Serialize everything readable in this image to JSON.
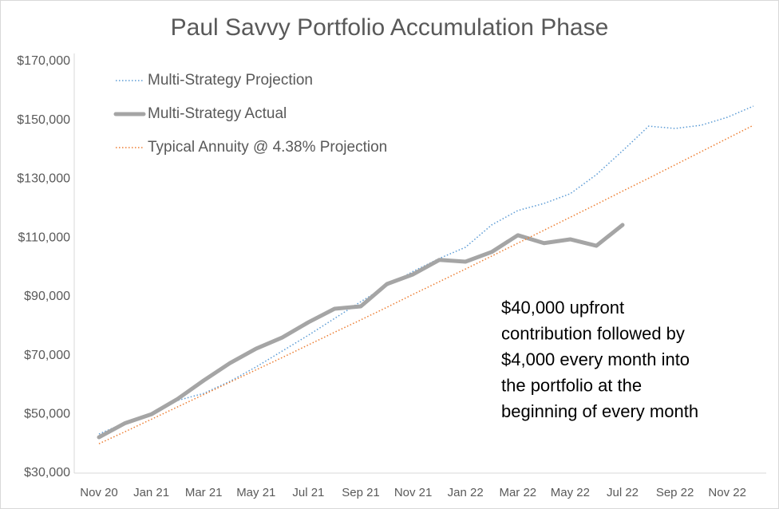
{
  "chart_data": {
    "type": "line",
    "title": "Paul Savvy Portfolio Accumulation Phase",
    "categories": [
      "Nov 20",
      null,
      "Jan 21",
      null,
      "Mar 21",
      null,
      "May 21",
      null,
      "Jul 21",
      null,
      "Sep 21",
      null,
      "Nov 21",
      null,
      "Jan 22",
      null,
      "Mar 22",
      null,
      "May 22",
      null,
      "Jul 22",
      null,
      "Sep 22",
      null,
      "Nov 22",
      null
    ],
    "series": [
      {
        "name": "Multi-Strategy Projection",
        "color": "#5b9bd5",
        "style": "dotted",
        "values": [
          43300,
          47100,
          50400,
          54700,
          57100,
          61200,
          66100,
          71500,
          76900,
          82600,
          88300,
          93700,
          98600,
          103000,
          106800,
          114400,
          119300,
          121700,
          125000,
          131500,
          139600,
          148000,
          147200,
          148300,
          151000,
          154800
        ]
      },
      {
        "name": "Multi-Strategy Actual",
        "color": "#a5a5a5",
        "style": "solid",
        "values": [
          42200,
          47000,
          50000,
          55200,
          61500,
          67400,
          72300,
          76100,
          81300,
          85900,
          86700,
          94300,
          97600,
          102500,
          101900,
          105200,
          110900,
          108200,
          109500,
          107300,
          114400,
          null,
          null,
          null,
          null,
          null
        ]
      },
      {
        "name": "Typical Annuity @ 4.38% Projection",
        "color": "#ed7d31",
        "style": "dotted",
        "values": [
          40000,
          44100,
          48300,
          52500,
          56700,
          60900,
          65100,
          69300,
          73600,
          77900,
          82100,
          86400,
          90800,
          95100,
          99400,
          103800,
          108200,
          112600,
          117000,
          121400,
          125900,
          130300,
          134800,
          139300,
          143800,
          148300
        ]
      }
    ],
    "ylim": [
      30000,
      170000
    ],
    "yticks": [
      {
        "value": 30000,
        "label": "$30,000"
      },
      {
        "value": 50000,
        "label": "$50,000"
      },
      {
        "value": 70000,
        "label": "$70,000"
      },
      {
        "value": 90000,
        "label": "$90,000"
      },
      {
        "value": 110000,
        "label": "$110,000"
      },
      {
        "value": 130000,
        "label": "$130,000"
      },
      {
        "value": 150000,
        "label": "$150,000"
      },
      {
        "value": 170000,
        "label": "$170,000"
      }
    ],
    "grid": false,
    "legend": "top-left",
    "annotation": [
      "$40,000 upfront",
      "contribution followed by",
      "$4,000 every month into",
      "the portfolio at the",
      "beginning of every month"
    ]
  }
}
